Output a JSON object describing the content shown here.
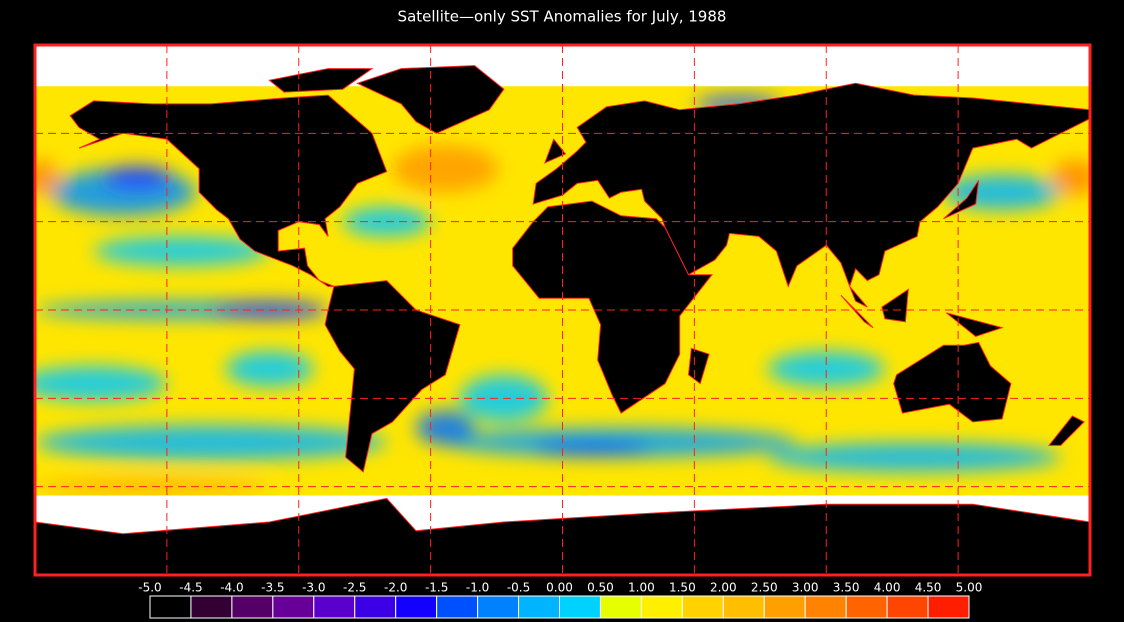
{
  "title": "Satellite—only SST Anomalies for July, 1988",
  "colorbar": {
    "labels": [
      "-5.0",
      "-4.5",
      "-4.0",
      "-3.5",
      "-3.0",
      "-2.5",
      "-2.0",
      "-1.5",
      "-1.0",
      "-0.5",
      "0.00",
      "0.50",
      "1.00",
      "1.50",
      "2.00",
      "2.50",
      "3.00",
      "3.50",
      "4.00",
      "4.50",
      "5.00"
    ],
    "colors": [
      "#000000",
      "#330033",
      "#550066",
      "#660099",
      "#5a00cc",
      "#3c00e6",
      "#1400ff",
      "#0050ff",
      "#0082ff",
      "#00b4ff",
      "#00d2ff",
      "#e6ff00",
      "#fff000",
      "#ffd200",
      "#ffbe00",
      "#ffa000",
      "#ff8200",
      "#ff6400",
      "#ff4600",
      "#ff1e00"
    ]
  }
}
